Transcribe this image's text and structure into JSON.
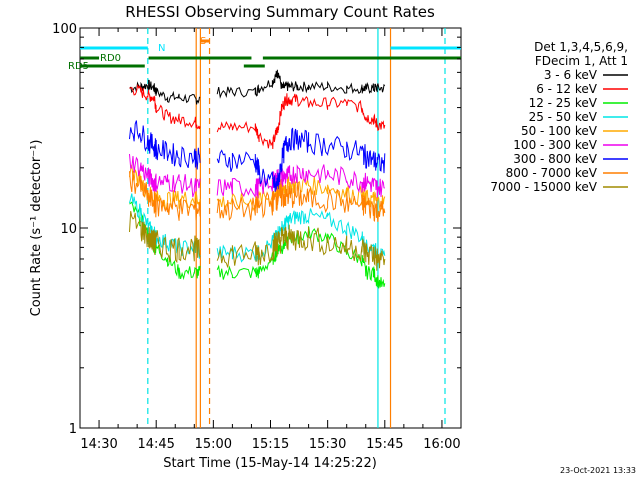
{
  "chart_data": {
    "type": "line",
    "title": "RHESSI Observing Summary Count Rates",
    "xlabel": "Start Time (15-May-14 14:25:22)",
    "ylabel": "Count Rate (s⁻¹ detector⁻¹)",
    "yscale": "log",
    "ylim": [
      1,
      100
    ],
    "xlim_minutes_after_1425": [
      0,
      100
    ],
    "x_ticks": [
      {
        "t": 5,
        "label": "14:30"
      },
      {
        "t": 20,
        "label": "14:45"
      },
      {
        "t": 35,
        "label": "15:00"
      },
      {
        "t": 50,
        "label": "15:15"
      },
      {
        "t": 65,
        "label": "15:30"
      },
      {
        "t": 80,
        "label": "15:45"
      },
      {
        "t": 95,
        "label": "16:00"
      }
    ],
    "y_ticks": [
      {
        "v": 1,
        "label": "1"
      },
      {
        "v": 10,
        "label": "10"
      },
      {
        "v": 100,
        "label": "100"
      }
    ],
    "legend_header": [
      "Det 1,3,4,5,6,9,",
      "FDecim 1, Att 1"
    ],
    "date_stamp": "23-Oct-2021 13:33",
    "x": [
      13,
      16,
      18,
      19.5,
      20,
      23,
      26,
      30,
      31.5,
      31.7,
      36,
      40,
      46,
      47,
      50.5,
      51.5,
      52,
      53,
      54,
      55,
      57,
      60,
      65,
      70,
      74,
      75,
      77,
      78,
      80
    ],
    "series": [
      {
        "name": "3 - 6 keV",
        "color": "#000000",
        "values": [
          50,
          51,
          52,
          50,
          48,
          45,
          45,
          44,
          44,
          null,
          48,
          48,
          48,
          50,
          54,
          58,
          60,
          50,
          51,
          51,
          51,
          51,
          51,
          50,
          50,
          50,
          50,
          50,
          50
        ]
      },
      {
        "name": "6 - 12 keV",
        "color": "#ff0000",
        "values": [
          50,
          48,
          46,
          45,
          40,
          36,
          35,
          34,
          33,
          null,
          32,
          32,
          32,
          29,
          26,
          30,
          32,
          40,
          44,
          44,
          44,
          42,
          42,
          42,
          40,
          36,
          35,
          33,
          32
        ]
      },
      {
        "name": "12 - 25 keV",
        "color": "#00ee00",
        "values": [
          13,
          11,
          9,
          8,
          8,
          7,
          6,
          6,
          6,
          null,
          6,
          6,
          6,
          6,
          7,
          7.5,
          8,
          8,
          8.5,
          9,
          9,
          9.5,
          9,
          7.5,
          7,
          6,
          6,
          5.5,
          5
        ]
      },
      {
        "name": "25 - 50 keV",
        "color": "#00e5e5",
        "values": [
          14,
          12,
          10,
          9.5,
          9,
          8.5,
          8,
          8,
          7.5,
          null,
          7.5,
          7.5,
          7.5,
          7.5,
          8.5,
          9,
          9.5,
          10,
          10.5,
          11,
          11.5,
          11.5,
          11,
          10,
          9,
          8,
          8,
          7.5,
          7
        ]
      },
      {
        "name": "50 - 100 keV",
        "color": "#ffaa00",
        "values": [
          20,
          17,
          15,
          14,
          14,
          14,
          14,
          14,
          14,
          null,
          13.5,
          13.5,
          13.5,
          14,
          14.5,
          15,
          15.5,
          16,
          16,
          16.5,
          16.5,
          16.5,
          16,
          15,
          14.5,
          14,
          14,
          13.5,
          13.5
        ]
      },
      {
        "name": "100 - 300 keV",
        "color": "#ee00ee",
        "values": [
          22,
          20,
          18,
          17,
          17,
          17,
          17,
          16,
          16,
          null,
          16,
          16,
          16,
          16,
          17,
          17.5,
          18,
          18,
          18,
          18.5,
          19,
          19,
          18.5,
          18,
          17,
          17,
          16.5,
          16,
          16
        ]
      },
      {
        "name": "300 - 800 keV",
        "color": "#0000ff",
        "values": [
          32,
          30,
          27,
          26,
          25,
          24,
          23,
          23,
          22,
          null,
          22,
          22,
          22,
          19,
          17,
          16,
          17,
          22,
          26,
          28,
          28,
          27,
          26,
          25,
          24,
          23,
          22,
          21,
          21
        ]
      },
      {
        "name": "800 - 7000 keV",
        "color": "#ff7f00",
        "values": [
          18,
          16,
          14,
          13.5,
          13,
          13,
          12.5,
          12.5,
          12.5,
          null,
          12.5,
          12.5,
          12.5,
          13,
          13.5,
          14,
          14.5,
          14.5,
          14.5,
          14.5,
          14.5,
          14,
          14,
          13.5,
          13,
          13,
          12.5,
          12.5,
          12
        ]
      },
      {
        "name": "7000 - 15000 keV",
        "color": "#a08c00",
        "values": [
          11,
          10,
          9,
          8.5,
          8.5,
          8,
          8,
          8,
          7.5,
          null,
          7.5,
          7.5,
          7.5,
          7.5,
          8,
          8.5,
          8.5,
          9,
          9,
          9,
          9,
          9,
          8.5,
          8,
          8,
          7.5,
          7.5,
          7,
          7
        ]
      }
    ],
    "flags": {
      "N": {
        "label": "N",
        "color": "#00e5ff",
        "intervals": [
          [
            0,
            17.8
          ],
          [
            81.5,
            100
          ]
        ]
      },
      "S": {
        "label": "S",
        "color": "#ff7f00",
        "intervals": [
          [
            31.5,
            34
          ]
        ]
      },
      "RD0": {
        "label": "RD0",
        "color": "#007000",
        "intervals": [
          [
            0,
            5
          ],
          [
            18,
            45
          ],
          [
            48,
            100
          ]
        ]
      },
      "RD5": {
        "label": "RD5",
        "color": "#007000",
        "intervals": [
          [
            0,
            17
          ],
          [
            43,
            48.5
          ]
        ]
      }
    },
    "vlines": [
      {
        "t": 17.8,
        "color": "#00e5e5",
        "style": "dashed"
      },
      {
        "t": 30.5,
        "color": "#ff7f00",
        "style": "solid"
      },
      {
        "t": 31.6,
        "color": "#ff7f00",
        "style": "solid"
      },
      {
        "t": 34,
        "color": "#ff7f00",
        "style": "dashed"
      },
      {
        "t": 78.2,
        "color": "#00e5e5",
        "style": "solid"
      },
      {
        "t": 81.5,
        "color": "#ff7f00",
        "style": "solid"
      },
      {
        "t": 95.8,
        "color": "#00e5e5",
        "style": "dashed"
      }
    ],
    "grid": false,
    "legend_position": "right"
  }
}
